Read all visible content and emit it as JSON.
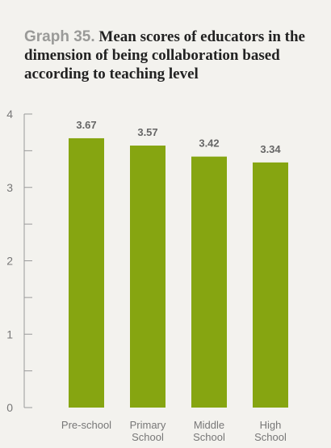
{
  "title": {
    "number": "Graph 35.",
    "text": "Mean scores of educators in the dimension of being collaboration based according to teaching level"
  },
  "colors": {
    "bar": "#86a511",
    "axis": "#9a9a9a",
    "background": "#f3f2ee"
  },
  "chart_data": {
    "type": "bar",
    "categories": [
      [
        "Pre-school"
      ],
      [
        "Primary",
        "School"
      ],
      [
        "Middle",
        "School"
      ],
      [
        "High",
        "School"
      ]
    ],
    "values": [
      3.67,
      3.57,
      3.42,
      3.34
    ],
    "value_labels": [
      "3.67",
      "3.57",
      "3.42",
      "3.34"
    ],
    "ylim": [
      0,
      4
    ],
    "yticks": [
      0,
      1,
      2,
      3,
      4
    ],
    "minor_ticks": [
      0.5,
      1.5,
      2.5,
      3.5
    ],
    "grid": false,
    "legend": "none"
  }
}
